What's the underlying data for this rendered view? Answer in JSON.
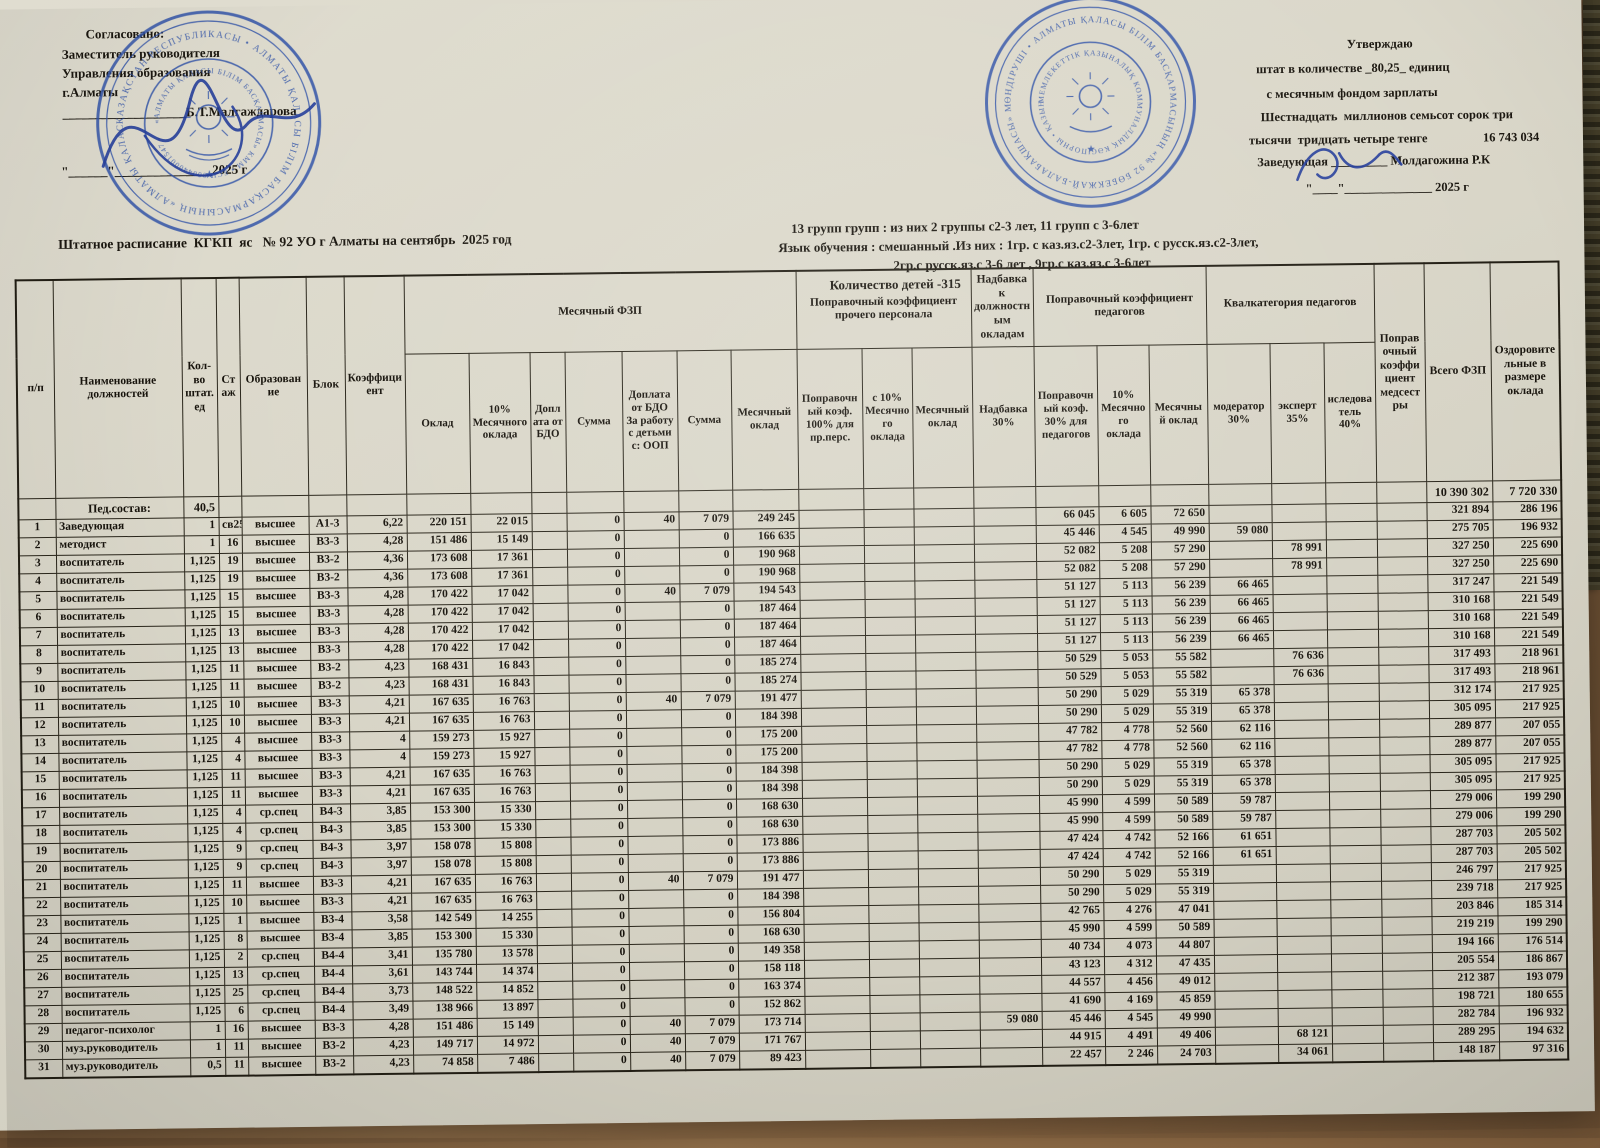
{
  "colors": {
    "stamp_blue": "#2b4da3",
    "ink": "#1b1710",
    "paper": "#d9d6c8"
  },
  "top_left": {
    "line1": "Согласовано:",
    "line2": "Заместитель руководителя",
    "line3": "Управления образования",
    "line4": "г.Алматы",
    "sign_line": "___________________Б.Т.Малгаждарова",
    "date_line": "\"______\"_______________2025 г"
  },
  "top_right": {
    "line1": "Утверждаю",
    "line2": "штат в количестве _80,25_ единиц",
    "line3": "с месячным фондом зарплаты",
    "line4": "Шестнадцать  миллионов семьсот сорок три",
    "line5": "тысячи  тридцать четыре тенге",
    "amount": "16 743 034",
    "line6": "Заведующая _________ Молдагожина Р.К",
    "date_line": "\"____\"______________ 2025 г"
  },
  "title": "Штатное расписание  КГКП  яс   № 92 УО г Алматы на сентябрь  2025 год",
  "info": {
    "line1": "13 групп групп : из них 2 группы с2-3 лет, 11 групп с 3-6лет",
    "line2": "Язык обучения : смешанный .Из них : 1гр. с каз.яз.с2-3лет, 1гр. с русск.яз.с2-3лет,",
    "line3": "2гр.с русск.яз.с 3-6 лет , 9гр.с каз.яз.с 3-6лет",
    "line4": "Количество детей -315"
  },
  "stamps": {
    "left_ring": "ҚАЗАҚСТАН РЕСПУБЛИКАСЫ • АЛМАТЫ ҚАЛАСЫ БІЛІМ БАСҚАРМАСЫНЫҢ «АЛМАТЫ ҚАЛАСЫ МЕМЛЕКЕТТІК МЕКЕМЕСІ» •",
    "left_inner": "«АЛМАТЫ ҚАЛАСЫ БІЛІМ БАСҚАРМАСЫ» КММ • БСН 000440001547 •",
    "right_ring": "ӨНДІРУШІ • АЛМАТЫ ҚАЛАСЫ БІЛІМ БАСҚАРМАСЫНЫҢ «№ 92 БӨБЕКЖАЙ-БАЛАБАҚШАСЫ» МКҚК • БСН 990340005312 •",
    "right_inner": "МЕМЛЕКЕТТІК ҚАЗЫНАЛЫҚ КОММУНАЛДЫҚ КӘСІПОРНЫ • ҚАЗЫНАЛЫҚ •"
  },
  "table": {
    "headers": {
      "pp": "п/п",
      "name": "Наименование должностей",
      "count": "Кол- во штат. ед",
      "staj": "Стаж",
      "edu": "Образование",
      "block": "Блок",
      "coef": "Коэффициент",
      "group_fzp": "Месячный ФЗП",
      "oklad": "Оклад",
      "ten_pct": "10% Месячного оклада",
      "dopl_bdo": "Доплата от БДО",
      "summa1": "Сумма",
      "dopl_oop": "Доплата от БДО За работу с детьми с: ООП",
      "summa2": "Сумма",
      "mes_oklad_fzp": "Месячный оклад",
      "group_prochego": "Поправочный коэффициент прочего персонала",
      "popr100": "Поправочный коэф. 100%  для пр.перс.",
      "s10_proch": "с 10% Месячного оклада",
      "mes_oklad_proch": "Месячный оклад",
      "group_nadbavka": "Надбавка к должностным окладам",
      "nadb30": "Надбавка 30%",
      "group_ped": "Поправочный коэффициент педагогов",
      "popr30": "Поправочный коэф. 30%  для педагогов",
      "ten_ped": "10% Месячного оклада",
      "mes_oklad_ped": "Месячный оклад",
      "group_kval": "Квалкатегория педагогов",
      "moderator": "модератор 30%",
      "expert": "эксперт 35%",
      "issledovatel": "иследователь 40%",
      "medsestry": "Поправочный коэффициент медсестры",
      "vsego_fzp": "Всего ФЗП",
      "ozdorov": "Оздоровительные в размере оклада"
    },
    "summary": [
      "",
      "Пед.состав:",
      "40,5",
      "",
      "",
      "",
      "",
      "",
      "",
      "",
      "",
      "",
      "",
      "",
      "",
      "",
      "",
      "",
      "",
      "",
      "",
      "",
      "",
      "",
      "",
      "10 390 302",
      "7 720 330"
    ],
    "rows": [
      [
        "1",
        "Заведующая",
        "1",
        "св25",
        "высшее",
        "А1-3",
        "6,22",
        "220 151",
        "22 015",
        "",
        "0",
        "40",
        "7 079",
        "249 245",
        "",
        "",
        "",
        "",
        "66 045",
        "6 605",
        "72 650",
        "",
        "",
        "",
        "",
        "321 894",
        "286 196"
      ],
      [
        "2",
        "методист",
        "1",
        "16",
        "высшее",
        "В3-3",
        "4,28",
        "151 486",
        "15 149",
        "",
        "0",
        "",
        "0",
        "166 635",
        "",
        "",
        "",
        "",
        "45 446",
        "4 545",
        "49 990",
        "59 080",
        "",
        "",
        "",
        "275 705",
        "196 932"
      ],
      [
        "3",
        "воспитатель",
        "1,125",
        "19",
        "высшее",
        "В3-2",
        "4,36",
        "173 608",
        "17 361",
        "",
        "0",
        "",
        "0",
        "190 968",
        "",
        "",
        "",
        "",
        "52 082",
        "5 208",
        "57 290",
        "",
        "78 991",
        "",
        "",
        "327 250",
        "225 690"
      ],
      [
        "4",
        "воспитатель",
        "1,125",
        "19",
        "высшее",
        "В3-2",
        "4,36",
        "173 608",
        "17 361",
        "",
        "0",
        "",
        "0",
        "190 968",
        "",
        "",
        "",
        "",
        "52 082",
        "5 208",
        "57 290",
        "",
        "78 991",
        "",
        "",
        "327 250",
        "225 690"
      ],
      [
        "5",
        "воспитатель",
        "1,125",
        "15",
        "высшее",
        "В3-3",
        "4,28",
        "170 422",
        "17 042",
        "",
        "0",
        "40",
        "7 079",
        "194 543",
        "",
        "",
        "",
        "",
        "51 127",
        "5 113",
        "56 239",
        "66 465",
        "",
        "",
        "",
        "317 247",
        "221 549"
      ],
      [
        "6",
        "воспитатель",
        "1,125",
        "15",
        "высшее",
        "В3-3",
        "4,28",
        "170 422",
        "17 042",
        "",
        "0",
        "",
        "0",
        "187 464",
        "",
        "",
        "",
        "",
        "51 127",
        "5 113",
        "56 239",
        "66 465",
        "",
        "",
        "",
        "310 168",
        "221 549"
      ],
      [
        "7",
        "воспитатель",
        "1,125",
        "13",
        "высшее",
        "В3-3",
        "4,28",
        "170 422",
        "17 042",
        "",
        "0",
        "",
        "0",
        "187 464",
        "",
        "",
        "",
        "",
        "51 127",
        "5 113",
        "56 239",
        "66 465",
        "",
        "",
        "",
        "310 168",
        "221 549"
      ],
      [
        "8",
        "воспитатель",
        "1,125",
        "13",
        "высшее",
        "В3-3",
        "4,28",
        "170 422",
        "17 042",
        "",
        "0",
        "",
        "0",
        "187 464",
        "",
        "",
        "",
        "",
        "51 127",
        "5 113",
        "56 239",
        "66 465",
        "",
        "",
        "",
        "310 168",
        "221 549"
      ],
      [
        "9",
        "воспитатель",
        "1,125",
        "11",
        "высшее",
        "В3-2",
        "4,23",
        "168 431",
        "16 843",
        "",
        "0",
        "",
        "0",
        "185 274",
        "",
        "",
        "",
        "",
        "50 529",
        "5 053",
        "55 582",
        "",
        "76 636",
        "",
        "",
        "317 493",
        "218 961"
      ],
      [
        "10",
        "воспитатель",
        "1,125",
        "11",
        "высшее",
        "В3-2",
        "4,23",
        "168 431",
        "16 843",
        "",
        "0",
        "",
        "0",
        "185 274",
        "",
        "",
        "",
        "",
        "50 529",
        "5 053",
        "55 582",
        "",
        "76 636",
        "",
        "",
        "317 493",
        "218 961"
      ],
      [
        "11",
        "воспитатель",
        "1,125",
        "10",
        "высшее",
        "В3-3",
        "4,21",
        "167 635",
        "16 763",
        "",
        "0",
        "40",
        "7 079",
        "191 477",
        "",
        "",
        "",
        "",
        "50 290",
        "5 029",
        "55 319",
        "65 378",
        "",
        "",
        "",
        "312 174",
        "217 925"
      ],
      [
        "12",
        "воспитатель",
        "1,125",
        "10",
        "высшее",
        "В3-3",
        "4,21",
        "167 635",
        "16 763",
        "",
        "0",
        "",
        "0",
        "184 398",
        "",
        "",
        "",
        "",
        "50 290",
        "5 029",
        "55 319",
        "65 378",
        "",
        "",
        "",
        "305 095",
        "217 925"
      ],
      [
        "13",
        "воспитатель",
        "1,125",
        "4",
        "высшее",
        "В3-3",
        "4",
        "159 273",
        "15 927",
        "",
        "0",
        "",
        "0",
        "175 200",
        "",
        "",
        "",
        "",
        "47 782",
        "4 778",
        "52 560",
        "62 116",
        "",
        "",
        "",
        "289 877",
        "207 055"
      ],
      [
        "14",
        "воспитатель",
        "1,125",
        "4",
        "высшее",
        "В3-3",
        "4",
        "159 273",
        "15 927",
        "",
        "0",
        "",
        "0",
        "175 200",
        "",
        "",
        "",
        "",
        "47 782",
        "4 778",
        "52 560",
        "62 116",
        "",
        "",
        "",
        "289 877",
        "207 055"
      ],
      [
        "15",
        "воспитатель",
        "1,125",
        "11",
        "высшее",
        "В3-3",
        "4,21",
        "167 635",
        "16 763",
        "",
        "0",
        "",
        "0",
        "184 398",
        "",
        "",
        "",
        "",
        "50 290",
        "5 029",
        "55 319",
        "65 378",
        "",
        "",
        "",
        "305 095",
        "217 925"
      ],
      [
        "16",
        "воспитатель",
        "1,125",
        "11",
        "высшее",
        "В3-3",
        "4,21",
        "167 635",
        "16 763",
        "",
        "0",
        "",
        "0",
        "184 398",
        "",
        "",
        "",
        "",
        "50 290",
        "5 029",
        "55 319",
        "65 378",
        "",
        "",
        "",
        "305 095",
        "217 925"
      ],
      [
        "17",
        "воспитатель",
        "1,125",
        "4",
        "ср.спец",
        "В4-3",
        "3,85",
        "153 300",
        "15 330",
        "",
        "0",
        "",
        "0",
        "168 630",
        "",
        "",
        "",
        "",
        "45 990",
        "4 599",
        "50 589",
        "59 787",
        "",
        "",
        "",
        "279 006",
        "199 290"
      ],
      [
        "18",
        "воспитатель",
        "1,125",
        "4",
        "ср.спец",
        "В4-3",
        "3,85",
        "153 300",
        "15 330",
        "",
        "0",
        "",
        "0",
        "168 630",
        "",
        "",
        "",
        "",
        "45 990",
        "4 599",
        "50 589",
        "59 787",
        "",
        "",
        "",
        "279 006",
        "199 290"
      ],
      [
        "19",
        "воспитатель",
        "1,125",
        "9",
        "ср.спец",
        "В4-3",
        "3,97",
        "158 078",
        "15 808",
        "",
        "0",
        "",
        "0",
        "173 886",
        "",
        "",
        "",
        "",
        "47 424",
        "4 742",
        "52 166",
        "61 651",
        "",
        "",
        "",
        "287 703",
        "205 502"
      ],
      [
        "20",
        "воспитатель",
        "1,125",
        "9",
        "ср.спец",
        "В4-3",
        "3,97",
        "158 078",
        "15 808",
        "",
        "0",
        "",
        "0",
        "173 886",
        "",
        "",
        "",
        "",
        "47 424",
        "4 742",
        "52 166",
        "61 651",
        "",
        "",
        "",
        "287 703",
        "205 502"
      ],
      [
        "21",
        "воспитатель",
        "1,125",
        "11",
        "высшее",
        "В3-3",
        "4,21",
        "167 635",
        "16 763",
        "",
        "0",
        "40",
        "7 079",
        "191 477",
        "",
        "",
        "",
        "",
        "50 290",
        "5 029",
        "55 319",
        "",
        "",
        "",
        "",
        "246 797",
        "217 925"
      ],
      [
        "22",
        "воспитатель",
        "1,125",
        "10",
        "высшее",
        "В3-3",
        "4,21",
        "167 635",
        "16 763",
        "",
        "0",
        "",
        "0",
        "184 398",
        "",
        "",
        "",
        "",
        "50 290",
        "5 029",
        "55 319",
        "",
        "",
        "",
        "",
        "239 718",
        "217 925"
      ],
      [
        "23",
        "воспитатель",
        "1,125",
        "1",
        "высшее",
        "В3-4",
        "3,58",
        "142 549",
        "14 255",
        "",
        "0",
        "",
        "0",
        "156 804",
        "",
        "",
        "",
        "",
        "42 765",
        "4 276",
        "47 041",
        "",
        "",
        "",
        "",
        "203 846",
        "185 314"
      ],
      [
        "24",
        "воспитатель",
        "1,125",
        "8",
        "высшее",
        "В3-4",
        "3,85",
        "153 300",
        "15 330",
        "",
        "0",
        "",
        "0",
        "168 630",
        "",
        "",
        "",
        "",
        "45 990",
        "4 599",
        "50 589",
        "",
        "",
        "",
        "",
        "219 219",
        "199 290"
      ],
      [
        "25",
        "воспитатель",
        "1,125",
        "2",
        "ср.спец",
        "В4-4",
        "3,41",
        "135 780",
        "13 578",
        "",
        "0",
        "",
        "0",
        "149 358",
        "",
        "",
        "",
        "",
        "40 734",
        "4 073",
        "44 807",
        "",
        "",
        "",
        "",
        "194 166",
        "176 514"
      ],
      [
        "26",
        "воспитатель",
        "1,125",
        "13",
        "ср.спец",
        "В4-4",
        "3,61",
        "143 744",
        "14 374",
        "",
        "0",
        "",
        "0",
        "158 118",
        "",
        "",
        "",
        "",
        "43 123",
        "4 312",
        "47 435",
        "",
        "",
        "",
        "",
        "205 554",
        "186 867"
      ],
      [
        "27",
        "воспитатель",
        "1,125",
        "25",
        "ср.спец",
        "В4-4",
        "3,73",
        "148 522",
        "14 852",
        "",
        "0",
        "",
        "0",
        "163 374",
        "",
        "",
        "",
        "",
        "44 557",
        "4 456",
        "49 012",
        "",
        "",
        "",
        "",
        "212 387",
        "193 079"
      ],
      [
        "28",
        "воспитатель",
        "1,125",
        "6",
        "ср.спец",
        "В4-4",
        "3,49",
        "138 966",
        "13 897",
        "",
        "0",
        "",
        "0",
        "152 862",
        "",
        "",
        "",
        "",
        "41 690",
        "4 169",
        "45 859",
        "",
        "",
        "",
        "",
        "198 721",
        "180 655"
      ],
      [
        "29",
        "педагог-психолог",
        "1",
        "16",
        "высшее",
        "В3-3",
        "4,28",
        "151 486",
        "15 149",
        "",
        "0",
        "40",
        "7 079",
        "173 714",
        "",
        "",
        "",
        "59 080",
        "45 446",
        "4 545",
        "49 990",
        "",
        "",
        "",
        "",
        "282 784",
        "196 932"
      ],
      [
        "30",
        "муз.руководитель",
        "1",
        "11",
        "высшее",
        "В3-2",
        "4,23",
        "149 717",
        "14 972",
        "",
        "0",
        "40",
        "7 079",
        "171 767",
        "",
        "",
        "",
        "",
        "44 915",
        "4 491",
        "49 406",
        "",
        "68 121",
        "",
        "",
        "289 295",
        "194 632"
      ],
      [
        "31",
        "муз.руководитель",
        "0,5",
        "11",
        "высшее",
        "В3-2",
        "4,23",
        "74 858",
        "7 486",
        "",
        "0",
        "40",
        "7 079",
        "89 423",
        "",
        "",
        "",
        "",
        "22 457",
        "2 246",
        "24 703",
        "",
        "34 061",
        "",
        "",
        "148 187",
        "97 316"
      ]
    ]
  }
}
